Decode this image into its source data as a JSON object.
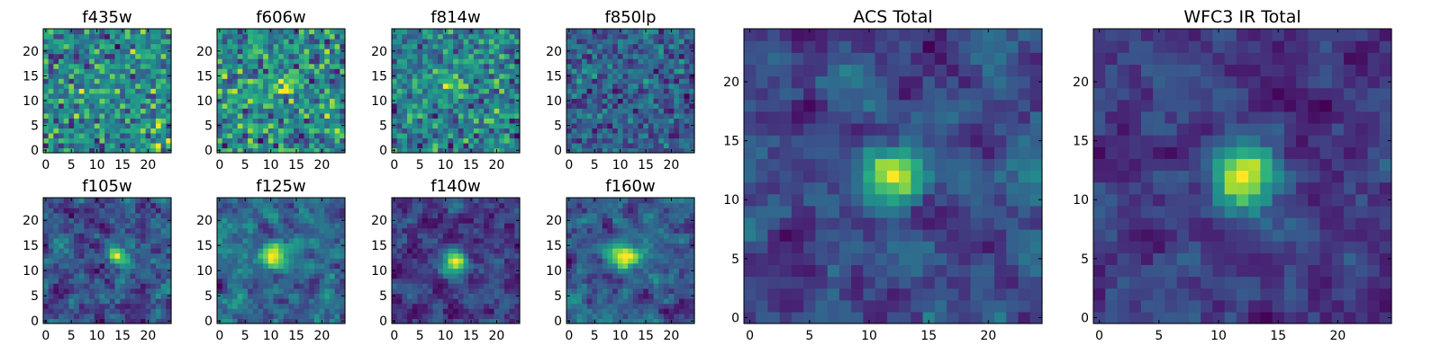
{
  "chart_data": [
    {
      "type": "heatmap",
      "title": "f435w",
      "xticks": [
        "0",
        "5",
        "10",
        "15",
        "20"
      ],
      "yticks": [
        "0",
        "5",
        "10",
        "15",
        "20"
      ],
      "xlim": [
        -0.5,
        24.5
      ],
      "ylim": [
        -0.5,
        24.5
      ],
      "grid_size": [
        25,
        25
      ],
      "colormap": "viridis",
      "hotspots": []
    },
    {
      "type": "heatmap",
      "title": "f606w",
      "xticks": [
        "0",
        "5",
        "10",
        "15",
        "20"
      ],
      "yticks": [
        "0",
        "5",
        "10",
        "15",
        "20"
      ],
      "xlim": [
        -0.5,
        24.5
      ],
      "ylim": [
        -0.5,
        24.5
      ],
      "grid_size": [
        25,
        25
      ],
      "colormap": "viridis",
      "hotspots": [
        [
          12,
          13,
          0.3
        ]
      ]
    },
    {
      "type": "heatmap",
      "title": "f814w",
      "xticks": [
        "0",
        "5",
        "10",
        "15",
        "20"
      ],
      "yticks": [
        "0",
        "5",
        "10",
        "15",
        "20"
      ],
      "xlim": [
        -0.5,
        24.5
      ],
      "ylim": [
        -0.5,
        24.5
      ],
      "grid_size": [
        25,
        25
      ],
      "colormap": "viridis",
      "hotspots": [
        [
          12,
          13,
          0.35
        ]
      ]
    },
    {
      "type": "heatmap",
      "title": "f850lp",
      "xticks": [
        "0",
        "5",
        "10",
        "15",
        "20"
      ],
      "yticks": [
        "0",
        "5",
        "10",
        "15",
        "20"
      ],
      "xlim": [
        -0.5,
        24.5
      ],
      "ylim": [
        -0.5,
        24.5
      ],
      "grid_size": [
        25,
        25
      ],
      "colormap": "viridis",
      "hotspots": []
    },
    {
      "type": "heatmap",
      "title": "f105w",
      "xticks": [
        "0",
        "5",
        "10",
        "15",
        "20"
      ],
      "yticks": [
        "0",
        "5",
        "10",
        "15",
        "20"
      ],
      "xlim": [
        -0.5,
        24.5
      ],
      "ylim": [
        -0.5,
        24.5
      ],
      "grid_size": [
        25,
        25
      ],
      "colormap": "viridis",
      "hotspots": [
        [
          14,
          13,
          0.45
        ]
      ]
    },
    {
      "type": "heatmap",
      "title": "f125w",
      "xticks": [
        "0",
        "5",
        "10",
        "15",
        "20"
      ],
      "yticks": [
        "0",
        "5",
        "10",
        "15",
        "20"
      ],
      "xlim": [
        -0.5,
        24.5
      ],
      "ylim": [
        -0.5,
        24.5
      ],
      "grid_size": [
        25,
        25
      ],
      "colormap": "viridis",
      "hotspots": [
        [
          11,
          13,
          0.5
        ]
      ]
    },
    {
      "type": "heatmap",
      "title": "f140w",
      "xticks": [
        "0",
        "5",
        "10",
        "15",
        "20"
      ],
      "yticks": [
        "0",
        "5",
        "10",
        "15",
        "20"
      ],
      "xlim": [
        -0.5,
        24.5
      ],
      "ylim": [
        -0.5,
        24.5
      ],
      "grid_size": [
        25,
        25
      ],
      "colormap": "viridis",
      "hotspots": [
        [
          12,
          12,
          0.7
        ]
      ]
    },
    {
      "type": "heatmap",
      "title": "f160w",
      "xticks": [
        "0",
        "5",
        "10",
        "15",
        "20"
      ],
      "yticks": [
        "0",
        "5",
        "10",
        "15",
        "20"
      ],
      "xlim": [
        -0.5,
        24.5
      ],
      "ylim": [
        -0.5,
        24.5
      ],
      "grid_size": [
        25,
        25
      ],
      "colormap": "viridis",
      "hotspots": [
        [
          11,
          13,
          0.8
        ]
      ]
    },
    {
      "type": "heatmap",
      "title": "ACS Total",
      "xticks": [
        "0",
        "5",
        "10",
        "15",
        "20"
      ],
      "yticks": [
        "0",
        "5",
        "10",
        "15",
        "20"
      ],
      "xlim": [
        -0.5,
        24.5
      ],
      "ylim": [
        -0.5,
        24.5
      ],
      "grid_size": [
        25,
        25
      ],
      "colormap": "viridis",
      "hotspots": [
        [
          12,
          12,
          0.65
        ]
      ]
    },
    {
      "type": "heatmap",
      "title": "WFC3 IR Total",
      "xticks": [
        "0",
        "5",
        "10",
        "15",
        "20"
      ],
      "yticks": [
        "0",
        "5",
        "10",
        "15",
        "20"
      ],
      "xlim": [
        -0.5,
        24.5
      ],
      "ylim": [
        -0.5,
        24.5
      ],
      "grid_size": [
        25,
        25
      ],
      "colormap": "viridis",
      "hotspots": [
        [
          12,
          12,
          1.0
        ]
      ]
    }
  ]
}
